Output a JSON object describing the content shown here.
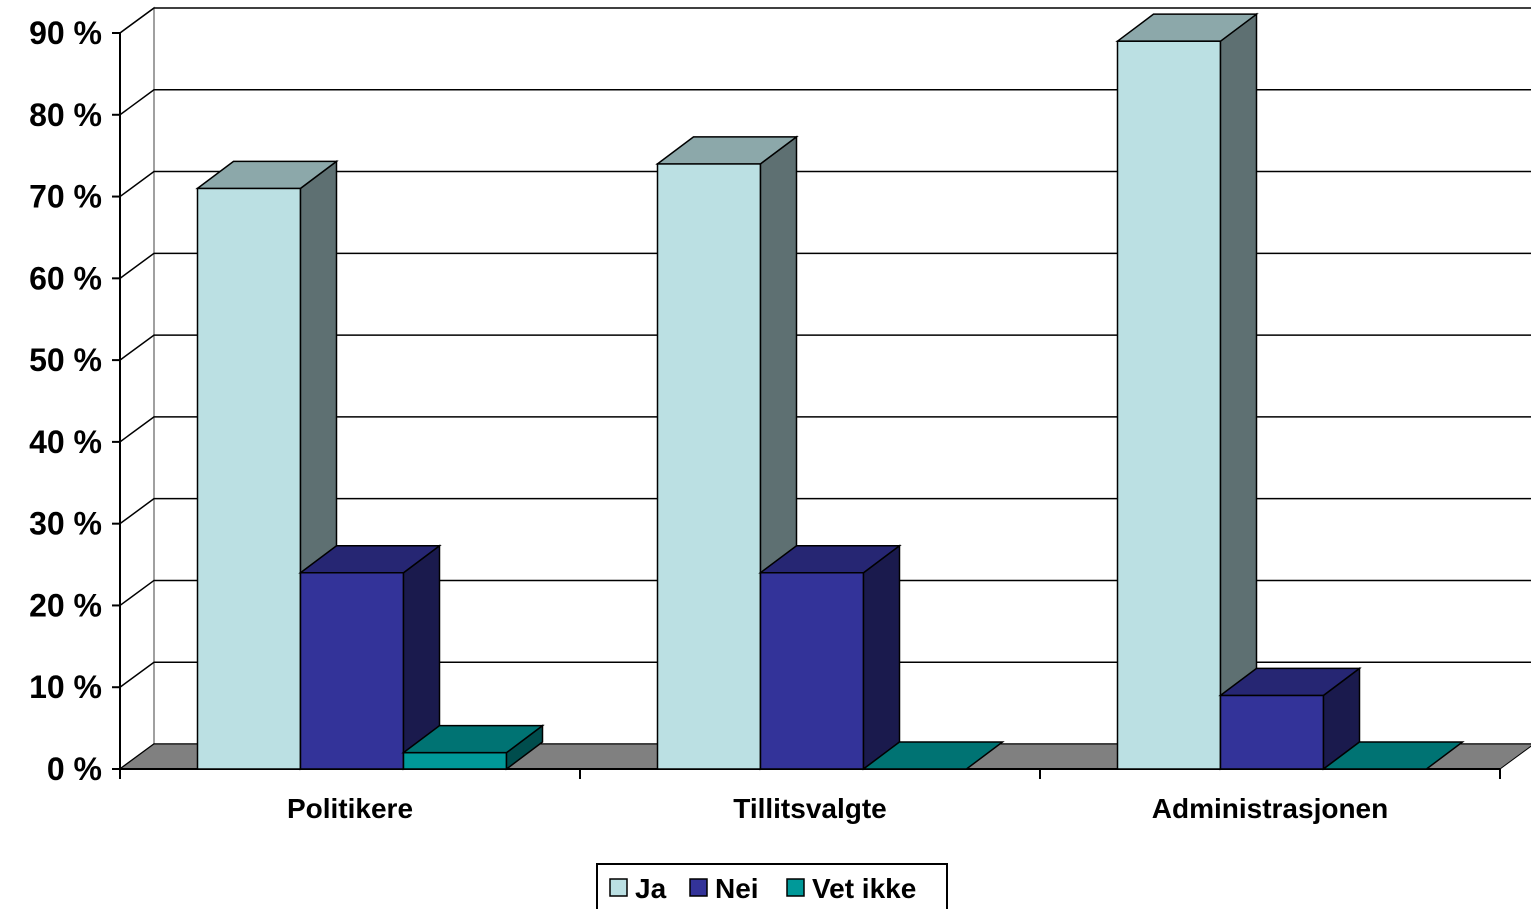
{
  "chart_data": {
    "type": "bar",
    "title": "",
    "xlabel": "",
    "ylabel": "",
    "ylim": [
      0,
      90
    ],
    "y_ticks": [
      "0 %",
      "10 %",
      "20 %",
      "30 %",
      "40 %",
      "50 %",
      "60 %",
      "70 %",
      "80 %",
      "90 %"
    ],
    "categories": [
      "Politikere",
      "Tillitsvalgte",
      "Administrasjonen"
    ],
    "series": [
      {
        "name": "Ja",
        "values": [
          71,
          74,
          89
        ],
        "color": "#BBE0E3"
      },
      {
        "name": "Nei",
        "values": [
          24,
          24,
          9
        ],
        "color": "#333399"
      },
      {
        "name": "Vet ikke",
        "values": [
          2,
          0,
          0
        ],
        "color": "#009999"
      }
    ],
    "grid": true,
    "legend_position": "bottom",
    "style": "3d-clustered-column"
  }
}
